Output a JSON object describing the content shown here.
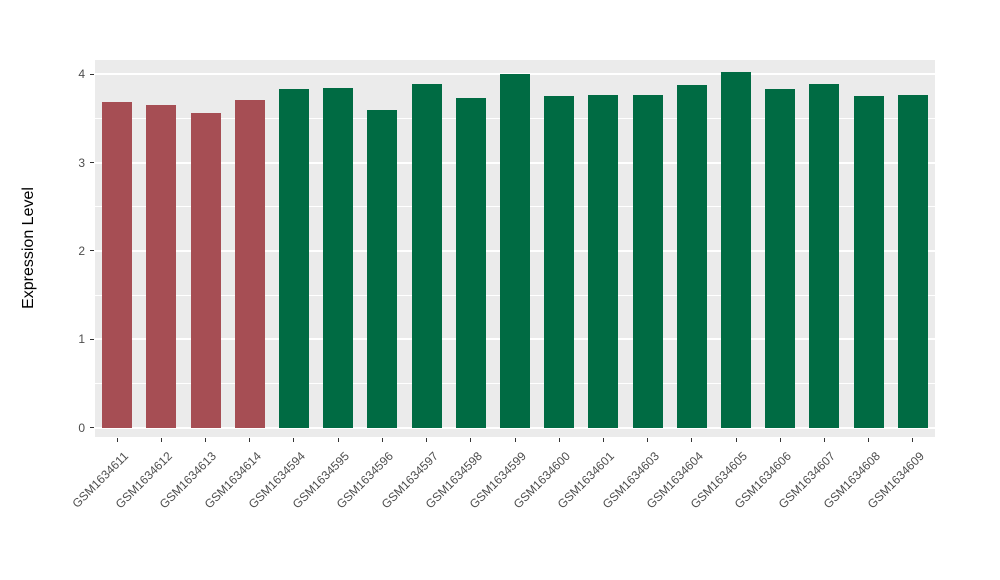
{
  "chart_data": {
    "type": "bar",
    "title": "",
    "xlabel": "",
    "ylabel": "Expression Level",
    "categories": [
      "GSM1634611",
      "GSM1634612",
      "GSM1634613",
      "GSM1634614",
      "GSM1634594",
      "GSM1634595",
      "GSM1634596",
      "GSM1634597",
      "GSM1634598",
      "GSM1634599",
      "GSM1634600",
      "GSM1634601",
      "GSM1634603",
      "GSM1634604",
      "GSM1634605",
      "GSM1634606",
      "GSM1634607",
      "GSM1634608",
      "GSM1634609"
    ],
    "values": [
      3.68,
      3.65,
      3.56,
      3.71,
      3.83,
      3.84,
      3.6,
      3.89,
      3.73,
      4.0,
      3.75,
      3.76,
      3.76,
      3.88,
      4.03,
      3.83,
      3.89,
      3.75,
      3.76
    ],
    "bar_groups": [
      "group1",
      "group1",
      "group1",
      "group1",
      "group2",
      "group2",
      "group2",
      "group2",
      "group2",
      "group2",
      "group2",
      "group2",
      "group2",
      "group2",
      "group2",
      "group2",
      "group2",
      "group2",
      "group2"
    ],
    "group_colors": {
      "group1": "#A64E54",
      "group2": "#006B43"
    },
    "ylim": [
      0,
      4
    ],
    "yticks": [
      0,
      1,
      2,
      3,
      4
    ],
    "minor_gridlines": [
      0.5,
      1.5,
      2.5,
      3.5
    ],
    "grid": "on",
    "legend": "none",
    "panel_background": "#EBEBEB",
    "gridline_color": "#FFFFFF"
  }
}
